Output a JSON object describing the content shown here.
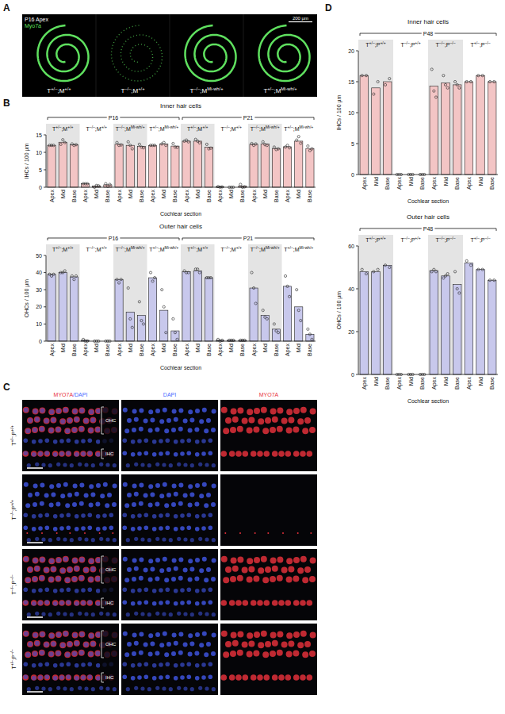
{
  "panels": [
    "A",
    "B",
    "C",
    "D"
  ],
  "panel_a": {
    "header": "P16 Apex",
    "stain": "Myo7a",
    "scale_bar": "200 µm",
    "genotypes": [
      [
        "T",
        "+/–",
        ";M",
        "+/+"
      ],
      [
        "T",
        "–/–",
        ";M",
        "+/+"
      ],
      [
        "T",
        "–/–",
        ";M",
        "Mi-wh/+"
      ],
      [
        "T",
        "+/–",
        ";M",
        "Mi-wh/+"
      ]
    ],
    "signal": [
      true,
      false,
      true,
      true
    ]
  },
  "panel_c": {
    "channels": [
      {
        "parts": [
          "MYO7A",
          "/DAPI"
        ],
        "colors": [
          "#e8323c",
          "#4a6bff"
        ]
      },
      {
        "parts": [
          "DAPI"
        ],
        "colors": [
          "#4a6bff"
        ]
      },
      {
        "parts": [
          "MYO7A"
        ],
        "colors": [
          "#e8323c"
        ]
      }
    ],
    "rows": [
      [
        "T",
        "+/–",
        ";P",
        "+/+"
      ],
      [
        "T",
        "–/–",
        ";P",
        "+/+"
      ],
      [
        "T",
        "–/–",
        ";P",
        "–/–"
      ],
      [
        "T",
        "+/–",
        ";P",
        "–/–"
      ]
    ],
    "regions": [
      "OHC",
      "IHC"
    ],
    "signal": [
      true,
      false,
      true,
      true
    ]
  },
  "chart_data": [
    {
      "type": "bar",
      "title": "Inner hair cells",
      "ages": [
        "P16",
        "P21"
      ],
      "groups": [
        [
          "T",
          "+/–",
          ";M",
          "+/+"
        ],
        [
          "T",
          "–/–",
          ";M",
          "+/+"
        ],
        [
          "T",
          "–/–",
          ";M",
          "Mi-wh/+"
        ],
        [
          "T",
          "+/–",
          ";M",
          "Mi-wh/+"
        ],
        [
          "T",
          "+/–",
          ";M",
          "+/+"
        ],
        [
          "T",
          "–/–",
          ";M",
          "+/+"
        ],
        [
          "T",
          "–/–",
          ";M",
          "Mi-wh/+"
        ],
        [
          "T",
          "+/–",
          ";M",
          "Mi-wh/+"
        ]
      ],
      "categories": [
        "Apex",
        "Mid",
        "Base",
        "Apex",
        "Mid",
        "Base",
        "Apex",
        "Mid",
        "Base",
        "Apex",
        "Mid",
        "Base",
        "Apex",
        "Mid",
        "Base",
        "Apex",
        "Mid",
        "Base",
        "Apex",
        "Mid",
        "Base",
        "Apex",
        "Mid",
        "Base"
      ],
      "values": [
        12.0,
        12.9,
        12.2,
        1.0,
        0.3,
        0.7,
        12.3,
        12.0,
        11.7,
        12.0,
        12.4,
        11.8,
        13.2,
        13.2,
        11.5,
        0.1,
        0.0,
        0.3,
        12.3,
        12.4,
        11.1,
        11.6,
        13.2,
        11.1
      ],
      "points": [
        [
          12,
          12,
          12
        ],
        [
          12.3,
          13.6,
          12.8
        ],
        [
          12.4,
          12.0,
          12.2
        ],
        [
          1,
          1,
          1
        ],
        [
          0,
          0.5,
          0.4
        ],
        [
          1,
          0.3,
          0.8
        ],
        [
          12.8,
          12,
          12.1
        ],
        [
          13,
          12,
          11
        ],
        [
          12.3,
          11.5,
          11.3
        ],
        [
          12,
          12,
          12
        ],
        [
          12.4,
          12.8,
          12
        ],
        [
          12.5,
          11.5,
          11.4
        ],
        [
          13.2,
          13.5,
          13
        ],
        [
          13.7,
          13.2,
          12.7
        ],
        [
          12.3,
          11,
          11.2
        ],
        [
          0.2,
          0,
          0.1
        ],
        [
          0,
          0,
          0
        ],
        [
          0.8,
          0,
          0.1
        ],
        [
          12.5,
          12,
          12.4
        ],
        [
          13,
          12.2,
          12
        ],
        [
          11.5,
          10.8,
          11
        ],
        [
          11.5,
          12,
          11.3
        ],
        [
          13.5,
          14.5,
          12.6
        ],
        [
          11.8,
          10.5,
          11
        ]
      ],
      "y_label": "IHCs / 100 µm",
      "x_label": "Cochlear section",
      "ylim": [
        0,
        15
      ],
      "yticks": [
        0,
        5,
        10,
        15
      ],
      "color": "#f3c5c5"
    },
    {
      "type": "bar",
      "title": "Outer hair cells",
      "ages": [
        "P16",
        "P21"
      ],
      "groups": [
        [
          "T",
          "+/–",
          ";M",
          "+/+"
        ],
        [
          "T",
          "–/–",
          ";M",
          "+/+"
        ],
        [
          "T",
          "–/–",
          ";M",
          "Mi-wh/+"
        ],
        [
          "T",
          "+/–",
          ";M",
          "Mi-wh/+"
        ],
        [
          "T",
          "+/–",
          ";M",
          "+/+"
        ],
        [
          "T",
          "–/–",
          ";M",
          "+/+"
        ],
        [
          "T",
          "–/–",
          ";M",
          "Mi-wh/+"
        ],
        [
          "T",
          "+/–",
          ";M",
          "Mi-wh/+"
        ]
      ],
      "categories": [
        "Apex",
        "Mid",
        "Base",
        "Apex",
        "Mid",
        "Base",
        "Apex",
        "Mid",
        "Base",
        "Apex",
        "Mid",
        "Base",
        "Apex",
        "Mid",
        "Base",
        "Apex",
        "Mid",
        "Base",
        "Apex",
        "Mid",
        "Base",
        "Apex",
        "Mid",
        "Base"
      ],
      "values": [
        39,
        40,
        37.5,
        0.5,
        0,
        0,
        36,
        17,
        15,
        37,
        18,
        6,
        40.5,
        41,
        37,
        0.5,
        0.5,
        0.5,
        31,
        15,
        7,
        32,
        20,
        4
      ],
      "points": [
        [
          39,
          38,
          39
        ],
        [
          40,
          40,
          41
        ],
        [
          38,
          36,
          38
        ],
        [
          1,
          0,
          0
        ],
        [
          0,
          0,
          0
        ],
        [
          0,
          0,
          0
        ],
        [
          36,
          34,
          36
        ],
        [
          31,
          13,
          8
        ],
        [
          23,
          12,
          10
        ],
        [
          40,
          35,
          37
        ],
        [
          30,
          20,
          5
        ],
        [
          13,
          5,
          1
        ],
        [
          41,
          40,
          40
        ],
        [
          42,
          42,
          40
        ],
        [
          37,
          37,
          37
        ],
        [
          1,
          0,
          0.5
        ],
        [
          0.5,
          0.5,
          0.5
        ],
        [
          0.5,
          0.5,
          0.5
        ],
        [
          40,
          31,
          22
        ],
        [
          18,
          14,
          13
        ],
        [
          10,
          6,
          5
        ],
        [
          38,
          32,
          26
        ],
        [
          30,
          18,
          12
        ],
        [
          7,
          4,
          1
        ]
      ],
      "y_label": "OHCs / 100 µm",
      "x_label": "Cochlear section",
      "ylim": [
        0,
        50
      ],
      "yticks": [
        0,
        10,
        20,
        30,
        40,
        50
      ],
      "color": "#c8c8ec"
    },
    {
      "type": "bar",
      "title": "Inner hair cells",
      "ages": [
        "P48"
      ],
      "groups": [
        [
          "T",
          "+/–",
          ";P",
          "+/+"
        ],
        [
          "T",
          "–/–",
          ";P",
          "+/+"
        ],
        [
          "T",
          "–/–",
          ";P",
          "–/–"
        ],
        [
          "T",
          "+/–",
          ";P",
          "–/–"
        ]
      ],
      "categories": [
        "Apex",
        "Mid",
        "Base",
        "Apex",
        "Mid",
        "Base",
        "Apex",
        "Mid",
        "Base",
        "Apex",
        "Mid",
        "Base"
      ],
      "values": [
        16,
        14,
        15,
        0,
        0,
        0,
        14.3,
        14.8,
        14.5,
        15,
        16,
        15
      ],
      "points": [
        [
          16,
          16
        ],
        [
          13,
          15
        ],
        [
          14.5,
          15.5
        ],
        [
          0,
          0,
          0
        ],
        [
          0,
          0,
          0
        ],
        [
          0,
          0,
          0
        ],
        [
          17,
          13.5,
          12.5
        ],
        [
          16,
          14.5,
          14
        ],
        [
          15,
          14.5,
          14
        ],
        [
          15,
          15
        ],
        [
          16,
          16
        ],
        [
          15,
          15
        ]
      ],
      "y_label": "IHCs / 100 µm",
      "x_label": "Cochlear section",
      "ylim": [
        0,
        20
      ],
      "yticks": [
        0,
        5,
        10,
        15,
        20
      ],
      "color": "#f3c5c5"
    },
    {
      "type": "bar",
      "title": "Outer hair cells",
      "ages": [
        "P48"
      ],
      "groups": [
        [
          "T",
          "+/–",
          ";P",
          "+/+"
        ],
        [
          "T",
          "–/–",
          ";P",
          "+/+"
        ],
        [
          "T",
          "–/–",
          ";P",
          "–/–"
        ],
        [
          "T",
          "+/–",
          ";P",
          "–/–"
        ]
      ],
      "categories": [
        "Apex",
        "Mid",
        "Base",
        "Apex",
        "Mid",
        "Base",
        "Apex",
        "Mid",
        "Base",
        "Apex",
        "Mid",
        "Base"
      ],
      "values": [
        48,
        48,
        51,
        0,
        0,
        0,
        48.5,
        46,
        42,
        52,
        49,
        44
      ],
      "points": [
        [
          49,
          47
        ],
        [
          48,
          49
        ],
        [
          51,
          50
        ],
        [
          0,
          0,
          0
        ],
        [
          0,
          0,
          0
        ],
        [
          0,
          0,
          0
        ],
        [
          48,
          49,
          48
        ],
        [
          45,
          46,
          47
        ],
        [
          48,
          40,
          38
        ],
        [
          53,
          51
        ],
        [
          49,
          49
        ],
        [
          44,
          44
        ]
      ],
      "y_label": "OHCs / 100 µm",
      "x_label": "Cochlear section",
      "ylim": [
        0,
        60
      ],
      "yticks": [
        0,
        20,
        40,
        60
      ],
      "color": "#c8c8ec"
    }
  ]
}
